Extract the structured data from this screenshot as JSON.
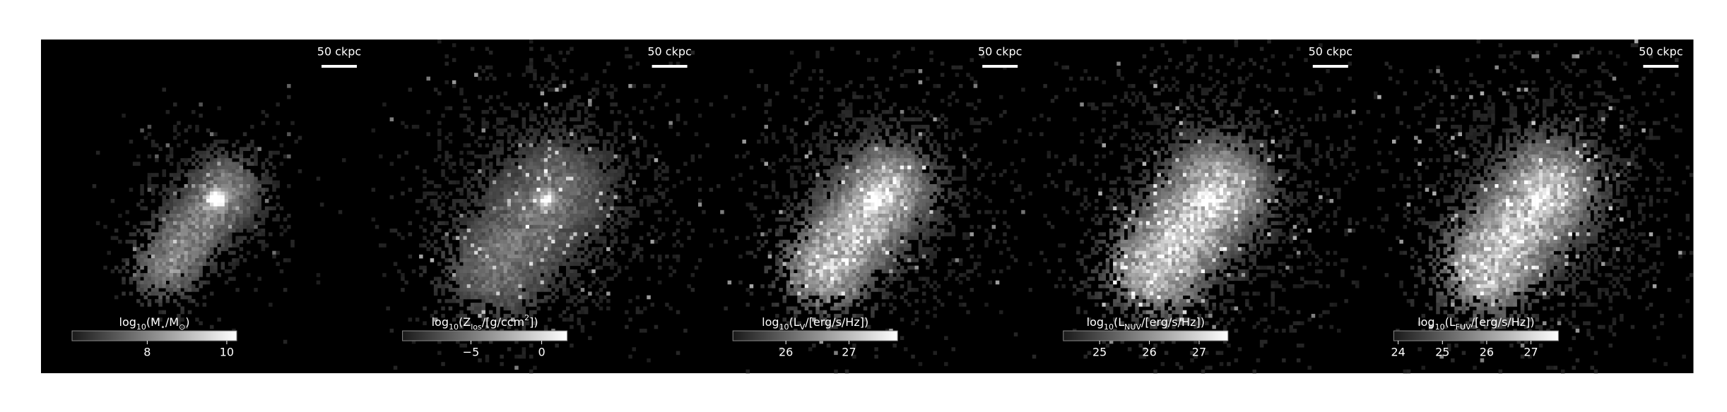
{
  "panels": [
    {
      "scale_bar": "50 ckpc",
      "colorbar": {
        "label": [
          {
            "text": "log"
          },
          {
            "text": "10",
            "shift": "sub"
          },
          {
            "text": "(M"
          },
          {
            "text": "⋆",
            "shift": "sub"
          },
          {
            "text": "/M"
          },
          {
            "text": "⊙",
            "shift": "sub"
          },
          {
            "text": ")"
          }
        ],
        "range": [
          6.11,
          10.25
        ],
        "ticks": [
          8,
          10
        ]
      }
    },
    {
      "scale_bar": "50 ckpc",
      "colorbar": {
        "label": [
          {
            "text": "log"
          },
          {
            "text": "10",
            "shift": "sub"
          },
          {
            "text": "(Z"
          },
          {
            "text": "los",
            "shift": "sub"
          },
          {
            "text": "/[g/ccm"
          },
          {
            "text": "2",
            "shift": "super"
          },
          {
            "text": "])"
          }
        ],
        "range": [
          -9.84,
          1.8
        ],
        "ticks": [
          {
            "value": -5,
            "label": "−5"
          },
          0
        ]
      }
    },
    {
      "scale_bar": "50 ckpc",
      "colorbar": {
        "label": [
          {
            "text": "log"
          },
          {
            "text": "10",
            "shift": "sub"
          },
          {
            "text": "(L"
          },
          {
            "text": "V",
            "shift": "sub"
          },
          {
            "text": "/[erg/s/Hz])"
          }
        ],
        "range": [
          25.16,
          27.77
        ],
        "ticks": [
          26,
          27
        ]
      }
    },
    {
      "scale_bar": "50 ckpc",
      "colorbar": {
        "label": [
          {
            "text": "log"
          },
          {
            "text": "10",
            "shift": "sub"
          },
          {
            "text": "(L"
          },
          {
            "text": "NUV",
            "shift": "sub"
          },
          {
            "text": "/[erg/s/Hz])"
          }
        ],
        "range": [
          24.27,
          27.58
        ],
        "ticks": [
          25,
          26,
          27
        ]
      }
    },
    {
      "scale_bar": "50 ckpc",
      "colorbar": {
        "label": [
          {
            "text": "log"
          },
          {
            "text": "10",
            "shift": "sub"
          },
          {
            "text": "(L"
          },
          {
            "text": "FUV",
            "shift": "sub"
          },
          {
            "text": "/[erg/s/Hz])"
          }
        ],
        "range": [
          23.9,
          27.62
        ],
        "ticks": [
          24,
          25,
          26,
          27
        ]
      }
    }
  ]
}
